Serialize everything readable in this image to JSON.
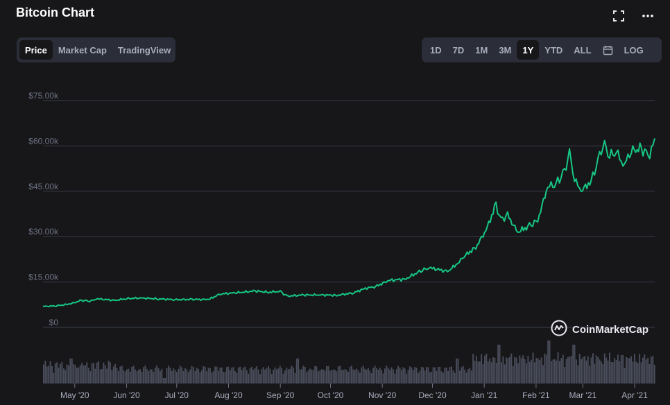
{
  "header": {
    "title": "Bitcoin Chart"
  },
  "icons": {
    "fullscreen": "fullscreen-icon",
    "more": "more-icon",
    "calendar": "calendar-icon",
    "logo": "coinmarketcap-logo-icon"
  },
  "view_tabs": [
    {
      "label": "Price",
      "active": true
    },
    {
      "label": "Market Cap",
      "active": false
    },
    {
      "label": "TradingView",
      "active": false
    }
  ],
  "range_tabs": [
    {
      "label": "1D",
      "active": false
    },
    {
      "label": "7D",
      "active": false
    },
    {
      "label": "1M",
      "active": false
    },
    {
      "label": "3M",
      "active": false
    },
    {
      "label": "1Y",
      "active": true
    },
    {
      "label": "YTD",
      "active": false
    },
    {
      "label": "ALL",
      "active": false
    },
    {
      "label": "",
      "active": false,
      "icon": "calendar-icon"
    },
    {
      "label": "LOG",
      "active": false
    }
  ],
  "watermark": "CoinMarketCap",
  "colors": {
    "line": "#16c784",
    "volume": "#4a4d5b",
    "grid": "#3a3c48",
    "background": "#17171a"
  },
  "chart_data": {
    "type": "line",
    "ylim": [
      0,
      75000
    ],
    "y_ticks": [
      {
        "value": 0,
        "label": "$0"
      },
      {
        "value": 15000,
        "label": "$15.00k"
      },
      {
        "value": 30000,
        "label": "$30.00k"
      },
      {
        "value": 45000,
        "label": "$45.00k"
      },
      {
        "value": 60000,
        "label": "$60.00k"
      },
      {
        "value": 75000,
        "label": "$75.00k"
      }
    ],
    "x_range": [
      "2020-04-12",
      "2021-04-13"
    ],
    "x_ticks": [
      {
        "date": "2020-05-01",
        "label": "May '20"
      },
      {
        "date": "2020-06-01",
        "label": "Jun '20"
      },
      {
        "date": "2020-07-01",
        "label": "Jul '20"
      },
      {
        "date": "2020-08-01",
        "label": "Aug '20"
      },
      {
        "date": "2020-09-01",
        "label": "Sep '20"
      },
      {
        "date": "2020-10-01",
        "label": "Oct '20"
      },
      {
        "date": "2020-11-01",
        "label": "Nov '20"
      },
      {
        "date": "2020-12-01",
        "label": "Dec '20"
      },
      {
        "date": "2021-01-01",
        "label": "Jan '21"
      },
      {
        "date": "2021-02-01",
        "label": "Feb '21"
      },
      {
        "date": "2021-03-01",
        "label": "Mar '21"
      },
      {
        "date": "2021-04-01",
        "label": "Apr '21"
      }
    ],
    "price_series": [
      [
        "2020-04-12",
        6900
      ],
      [
        "2020-04-20",
        7100
      ],
      [
        "2020-04-28",
        7700
      ],
      [
        "2020-05-05",
        8900
      ],
      [
        "2020-05-10",
        8700
      ],
      [
        "2020-05-15",
        9400
      ],
      [
        "2020-05-25",
        8900
      ],
      [
        "2020-06-01",
        9500
      ],
      [
        "2020-06-10",
        9700
      ],
      [
        "2020-06-20",
        9400
      ],
      [
        "2020-06-30",
        9150
      ],
      [
        "2020-07-10",
        9250
      ],
      [
        "2020-07-20",
        9200
      ],
      [
        "2020-07-27",
        11000
      ],
      [
        "2020-08-05",
        11400
      ],
      [
        "2020-08-17",
        12000
      ],
      [
        "2020-08-25",
        11600
      ],
      [
        "2020-09-01",
        11900
      ],
      [
        "2020-09-05",
        10300
      ],
      [
        "2020-09-15",
        10700
      ],
      [
        "2020-09-25",
        10700
      ],
      [
        "2020-10-05",
        10600
      ],
      [
        "2020-10-15",
        11400
      ],
      [
        "2020-10-21",
        12800
      ],
      [
        "2020-10-28",
        13500
      ],
      [
        "2020-11-05",
        15500
      ],
      [
        "2020-11-15",
        16000
      ],
      [
        "2020-11-25",
        19000
      ],
      [
        "2020-11-30",
        19600
      ],
      [
        "2020-12-10",
        18500
      ],
      [
        "2020-12-16",
        21000
      ],
      [
        "2020-12-20",
        23500
      ],
      [
        "2020-12-27",
        26500
      ],
      [
        "2021-01-02",
        32000
      ],
      [
        "2021-01-08",
        40500
      ],
      [
        "2021-01-11",
        35500
      ],
      [
        "2021-01-15",
        37000
      ],
      [
        "2021-01-21",
        31500
      ],
      [
        "2021-01-28",
        33500
      ],
      [
        "2021-02-02",
        35500
      ],
      [
        "2021-02-08",
        46500
      ],
      [
        "2021-02-13",
        47500
      ],
      [
        "2021-02-18",
        51500
      ],
      [
        "2021-02-21",
        57500
      ],
      [
        "2021-02-24",
        49000
      ],
      [
        "2021-02-28",
        45000
      ],
      [
        "2021-03-06",
        48500
      ],
      [
        "2021-03-10",
        55000
      ],
      [
        "2021-03-13",
        61000
      ],
      [
        "2021-03-17",
        57000
      ],
      [
        "2021-03-22",
        57500
      ],
      [
        "2021-03-25",
        53000
      ],
      [
        "2021-03-30",
        58500
      ],
      [
        "2021-04-05",
        59000
      ],
      [
        "2021-04-10",
        57000
      ],
      [
        "2021-04-13",
        62500
      ]
    ]
  }
}
